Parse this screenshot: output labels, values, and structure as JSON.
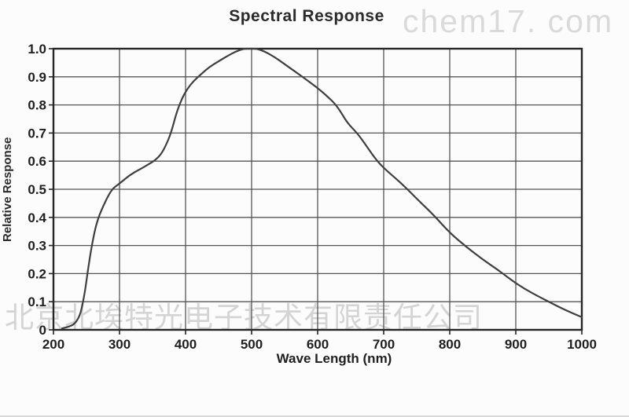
{
  "page": {
    "title": "Spectral Response",
    "watermark_top_right": "chem17. com",
    "watermark_bottom": "北京北埃特光电子技术有限责任公司"
  },
  "chart_data": {
    "type": "line",
    "title": "Spectral Response",
    "xlabel": "Wave Length (nm)",
    "ylabel": "Relative Response",
    "xlim": [
      200,
      1000
    ],
    "ylim": [
      0,
      1.0
    ],
    "grid": true,
    "legend": false,
    "x_ticks": [
      200,
      300,
      400,
      500,
      600,
      700,
      800,
      900,
      1000
    ],
    "x_tick_labels": [
      "200",
      "300",
      "400",
      "500",
      "600",
      "700",
      "800",
      "900",
      "1000"
    ],
    "y_ticks": [
      0,
      0.1,
      0.2,
      0.3,
      0.4,
      0.5,
      0.6,
      0.7,
      0.8,
      0.9,
      1.0
    ],
    "y_tick_labels": [
      "0",
      "0.1",
      "0.2",
      "0.3",
      "0.4",
      "0.5",
      "0.6",
      "0.7",
      "0.8",
      "0.9",
      "1.0"
    ],
    "series": [
      {
        "name": "Spectral Response",
        "x": [
          213,
          222,
          232,
          240,
          244,
          248,
          252,
          258,
          265,
          275,
          288,
          300,
          315,
          330,
          345,
          355,
          363,
          370,
          378,
          386,
          394,
          402,
          412,
          424,
          436,
          450,
          464,
          476,
          488,
          498,
          508,
          520,
          535,
          550,
          565,
          580,
          600,
          615,
          630,
          645,
          660,
          675,
          690,
          705,
          720,
          736,
          755,
          775,
          800,
          825,
          850,
          875,
          900,
          925,
          950,
          975,
          1000
        ],
        "y": [
          0.005,
          0.01,
          0.02,
          0.05,
          0.09,
          0.14,
          0.21,
          0.3,
          0.38,
          0.44,
          0.5,
          0.52,
          0.55,
          0.57,
          0.59,
          0.605,
          0.625,
          0.655,
          0.7,
          0.77,
          0.82,
          0.855,
          0.885,
          0.91,
          0.935,
          0.955,
          0.975,
          0.99,
          1.0,
          1.0,
          1.0,
          0.99,
          0.97,
          0.945,
          0.92,
          0.895,
          0.86,
          0.83,
          0.795,
          0.735,
          0.7,
          0.65,
          0.6,
          0.565,
          0.535,
          0.5,
          0.455,
          0.41,
          0.345,
          0.295,
          0.25,
          0.21,
          0.165,
          0.13,
          0.1,
          0.07,
          0.045
        ]
      }
    ],
    "colors": {
      "curve": "#3f3f3f",
      "grid": "#555555",
      "axis": "#262626",
      "text": "#1f1f1f",
      "watermark": "#d9d9d9"
    }
  }
}
